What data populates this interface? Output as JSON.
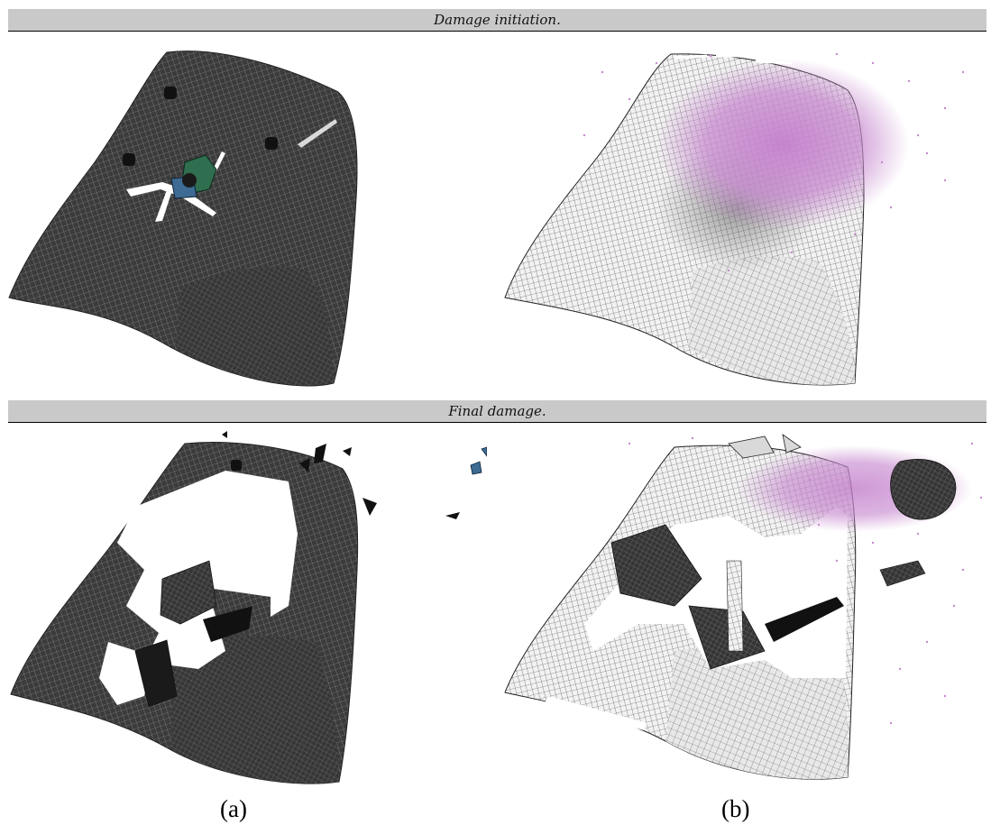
{
  "headers": {
    "top": "Damage initiation.",
    "bottom": "Final damage."
  },
  "captions": {
    "left": "(a)",
    "right": "(b)"
  },
  "colors": {
    "mesh_dark": "#3a3a3a",
    "mesh_light": "#efefef",
    "particles": "#c789cf",
    "projectile_green": "#2f6e4e",
    "projectile_blue": "#3e6b93",
    "header_bg": "#c9c9c9"
  }
}
